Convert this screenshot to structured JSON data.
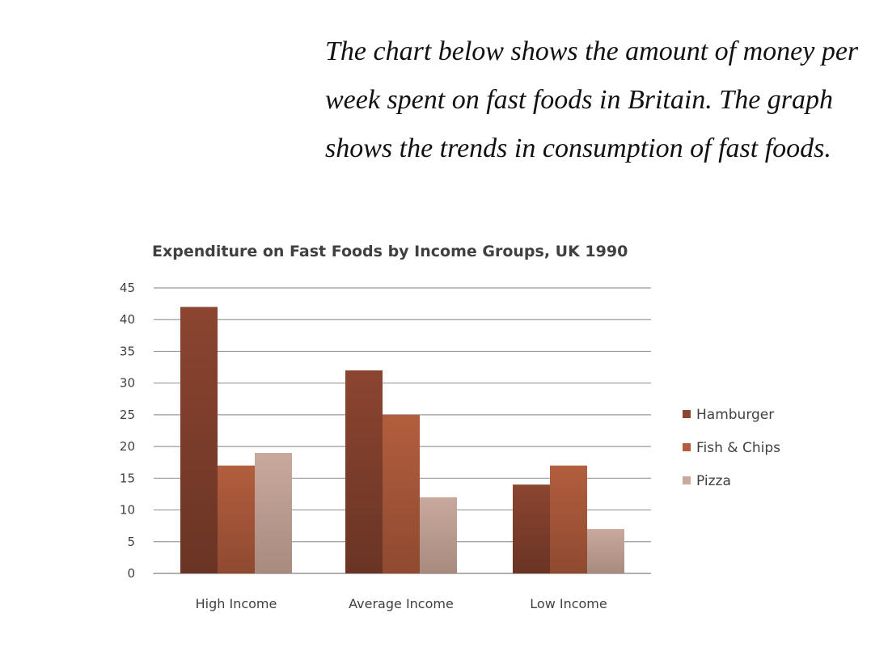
{
  "intro": {
    "lines": [
      "The chart below shows the amount of money per",
      "week spent on fast foods in Britain. The graph",
      "shows the trends in consumption of fast foods."
    ]
  },
  "chart_data": {
    "type": "bar",
    "title": "Expenditure on Fast Foods by Income Groups, UK 1990",
    "xlabel": "",
    "ylabel": "",
    "categories": [
      "High Income",
      "Average Income",
      "Low Income"
    ],
    "series": [
      {
        "name": "Hamburger",
        "values": [
          42,
          32,
          14
        ],
        "color": "#8b4530",
        "color_dark": "#6a3424"
      },
      {
        "name": "Fish & Chips",
        "values": [
          17,
          25,
          17
        ],
        "color": "#b25e3e",
        "color_dark": "#8f4a30"
      },
      {
        "name": "Pizza",
        "values": [
          19,
          12,
          7
        ],
        "color": "#c9a99e",
        "color_dark": "#a88a7e"
      }
    ],
    "ylim": [
      0,
      45
    ],
    "yticks": [
      0,
      5,
      10,
      15,
      20,
      25,
      30,
      35,
      40,
      45
    ],
    "grid": true,
    "legend_position": "right"
  }
}
